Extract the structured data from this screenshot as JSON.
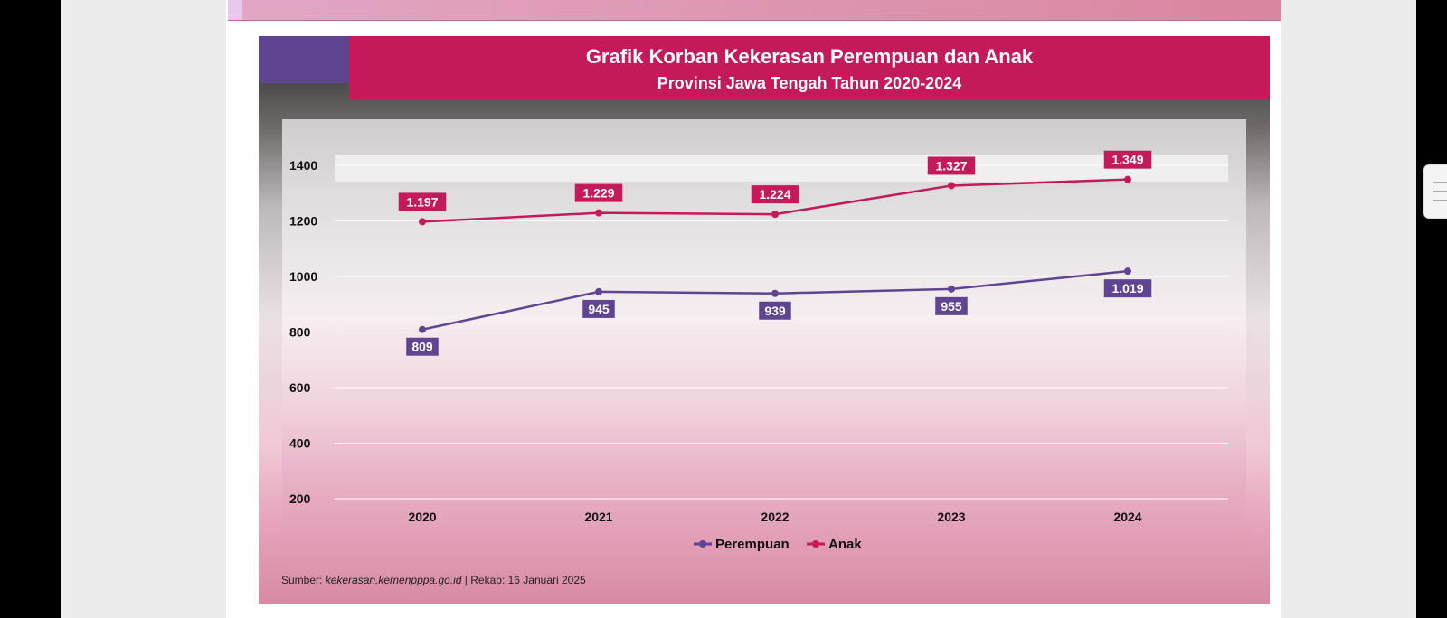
{
  "chart_data": {
    "type": "line",
    "title": "Grafik Korban Kekerasan Perempuan dan Anak",
    "subtitle": "Provinsi Jawa Tengah Tahun 2020-2024",
    "categories": [
      "2020",
      "2021",
      "2022",
      "2023",
      "2024"
    ],
    "series": [
      {
        "name": "Perempuan",
        "color": "#5f4591",
        "values": [
          809,
          945,
          939,
          955,
          1019
        ],
        "labels": [
          "809",
          "945",
          "939",
          "955",
          "1.019"
        ]
      },
      {
        "name": "Anak",
        "color": "#c41a59",
        "values": [
          1197,
          1229,
          1224,
          1327,
          1349
        ],
        "labels": [
          "1.197",
          "1.229",
          "1.224",
          "1.327",
          "1.349"
        ]
      }
    ],
    "yticks": [
      200,
      400,
      600,
      800,
      1000,
      1200,
      1400
    ],
    "ylim": [
      200,
      1400
    ],
    "grid": true,
    "legend_position": "bottom-center"
  },
  "source": {
    "prefix": "Sumber: ",
    "link": "kekerasan.kemenpppa.go.id",
    "suffix": " | Rekap: 16 Januari 2025"
  }
}
